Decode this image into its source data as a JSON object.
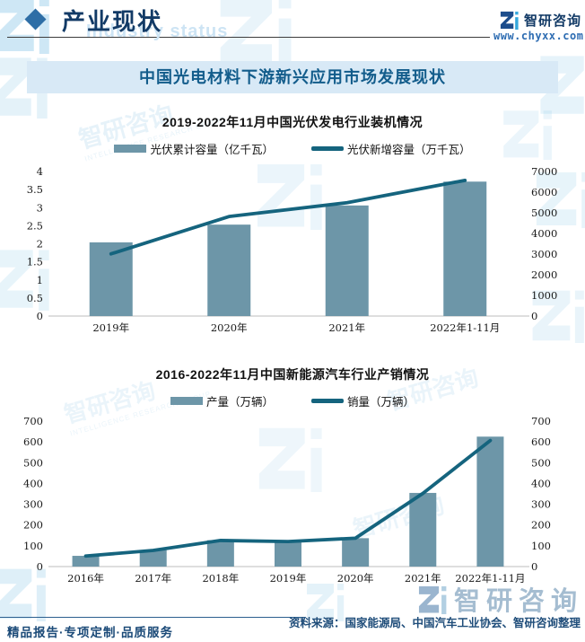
{
  "header": {
    "title": "产业现状",
    "watermark_en": "Industry status",
    "brand": "智研咨询",
    "website": "www.chyxx.com"
  },
  "banner": {
    "title": "中国光电材料下游新兴应用市场发展现状"
  },
  "chart_data": [
    {
      "type": "bar+line",
      "title": "2019-2022年11月中国光伏发电行业装机情况",
      "categories": [
        "2019年",
        "2020年",
        "2021年",
        "2022年1-11月"
      ],
      "series": [
        {
          "name": "光伏累计容量（亿千瓦）",
          "type": "bar",
          "axis": "left",
          "values": [
            2.04,
            2.53,
            3.06,
            3.72
          ]
        },
        {
          "name": "光伏新增容量（万千瓦）",
          "type": "line",
          "axis": "right",
          "values": [
            3011,
            4820,
            5488,
            6571
          ]
        }
      ],
      "left_axis": {
        "min": 0,
        "max": 4,
        "step": 0.5
      },
      "right_axis": {
        "min": 0,
        "max": 7000,
        "step": 1000
      },
      "legend_position": "top",
      "grid": false
    },
    {
      "type": "bar+line",
      "title": "2016-2022年11月中国新能源汽车行业产销情况",
      "categories": [
        "2016年",
        "2017年",
        "2018年",
        "2019年",
        "2020年",
        "2021年",
        "2022年1-11月"
      ],
      "series": [
        {
          "name": "产量（万辆）",
          "type": "bar",
          "axis": "left",
          "values": [
            51.7,
            79.4,
            127.0,
            124.2,
            136.6,
            354.5,
            625.3
          ]
        },
        {
          "name": "销量（万辆）",
          "type": "line",
          "axis": "right",
          "values": [
            50.7,
            77.7,
            125.6,
            120.6,
            136.7,
            352.1,
            606.7
          ]
        }
      ],
      "left_axis": {
        "min": 0,
        "max": 700,
        "step": 100
      },
      "right_axis": {
        "min": 0,
        "max": 700,
        "step": 100
      },
      "legend_position": "top",
      "grid": false
    }
  ],
  "footer": {
    "tagline": "精品报告·专项定制·品质服务",
    "source": "资料来源：国家能源局、中国汽车工业协会、智研咨询整理"
  },
  "watermark": {
    "brand": "智研咨询",
    "group": "INTELLIGENCE RESEARCH GROUP"
  },
  "colors": {
    "bar": "#6d96a8",
    "line": "#15647e",
    "banner_bg": "#d8e9f6",
    "banner_text": "#125c8b",
    "navy": "#123a66",
    "diamond": "#2e6ea6",
    "logo_navy": "#1d4d8c",
    "logo_accent": "#35a8dc",
    "wm_blue": "#58a9d8",
    "footer_navy": "#1b4a78",
    "source_blue": "#1f4d7a",
    "site_blue": "#2d6cb2",
    "tick": "#1a1a1a",
    "baseline": "#c9c9c9"
  }
}
